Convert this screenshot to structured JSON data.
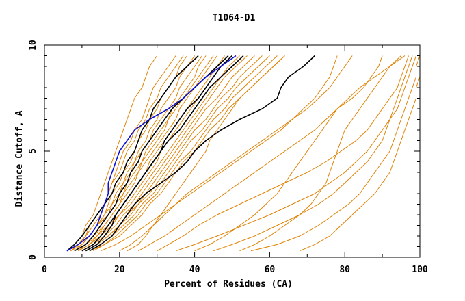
{
  "chart_data": {
    "type": "line",
    "title": "T1064-D1",
    "xlabel": "Percent of Residues (CA)",
    "ylabel": "Distance Cutoff, A",
    "xlim": [
      0,
      100
    ],
    "ylim": [
      0,
      10
    ],
    "xticks": [
      0,
      20,
      40,
      60,
      80,
      100
    ],
    "yticks": [
      0,
      5,
      10
    ],
    "grid": false,
    "legend": "none",
    "colors": {
      "orange": "#e08000",
      "black": "#000000",
      "blue": "#1010d0"
    },
    "y_levels": [
      0.3,
      0.6,
      1,
      1.5,
      2,
      2.5,
      3,
      3.5,
      4,
      4.5,
      5,
      5.5,
      6,
      6.5,
      7,
      7.5,
      8,
      8.5,
      9,
      9.5
    ],
    "series": [
      {
        "color": "orange",
        "x": [
          6,
          8,
          10,
          11,
          13,
          14,
          15,
          16,
          17,
          18,
          19,
          20,
          21,
          22,
          23,
          24,
          26,
          27,
          28,
          30
        ]
      },
      {
        "color": "orange",
        "x": [
          6,
          9,
          11,
          13,
          15,
          16,
          17,
          18,
          19,
          20,
          21,
          23,
          24,
          26,
          27,
          28,
          29,
          31,
          33,
          35
        ]
      },
      {
        "color": "orange",
        "x": [
          7,
          9,
          11,
          12,
          14,
          16,
          17,
          18,
          20,
          21,
          22,
          24,
          25,
          27,
          28,
          30,
          31,
          33,
          35,
          37
        ]
      },
      {
        "color": "orange",
        "x": [
          7,
          10,
          12,
          14,
          16,
          17,
          18,
          20,
          21,
          23,
          24,
          25,
          27,
          28,
          30,
          31,
          33,
          35,
          36,
          38
        ]
      },
      {
        "color": "orange",
        "x": [
          7,
          9,
          12,
          14,
          16,
          18,
          19,
          21,
          22,
          24,
          25,
          27,
          28,
          30,
          31,
          33,
          35,
          36,
          38,
          40
        ]
      },
      {
        "color": "orange",
        "x": [
          8,
          10,
          12,
          14,
          17,
          18,
          20,
          21,
          23,
          24,
          26,
          28,
          29,
          31,
          33,
          35,
          36,
          38,
          40,
          42
        ]
      },
      {
        "color": "orange",
        "x": [
          8,
          11,
          13,
          15,
          17,
          19,
          21,
          22,
          24,
          26,
          27,
          29,
          31,
          33,
          34,
          36,
          38,
          40,
          41,
          43
        ]
      },
      {
        "color": "orange",
        "x": [
          8,
          11,
          13,
          16,
          18,
          20,
          21,
          23,
          25,
          26,
          28,
          30,
          32,
          33,
          35,
          37,
          39,
          41,
          43,
          45
        ]
      },
      {
        "color": "orange",
        "x": [
          9,
          11,
          14,
          16,
          18,
          20,
          22,
          24,
          25,
          27,
          29,
          31,
          33,
          35,
          36,
          38,
          40,
          42,
          44,
          46
        ]
      },
      {
        "color": "orange",
        "x": [
          9,
          12,
          14,
          17,
          19,
          21,
          23,
          25,
          27,
          28,
          30,
          32,
          34,
          36,
          38,
          40,
          42,
          44,
          46,
          48
        ]
      },
      {
        "color": "orange",
        "x": [
          9,
          12,
          15,
          17,
          20,
          22,
          24,
          26,
          28,
          30,
          31,
          33,
          35,
          37,
          39,
          41,
          43,
          45,
          47,
          50
        ]
      },
      {
        "color": "orange",
        "x": [
          10,
          13,
          15,
          18,
          20,
          23,
          25,
          27,
          29,
          31,
          33,
          35,
          37,
          39,
          41,
          43,
          45,
          47,
          49,
          52
        ]
      },
      {
        "color": "orange",
        "x": [
          10,
          13,
          16,
          19,
          21,
          24,
          26,
          28,
          30,
          32,
          34,
          36,
          38,
          40,
          42,
          44,
          46,
          48,
          51,
          54
        ]
      },
      {
        "color": "orange",
        "x": [
          11,
          14,
          17,
          20,
          22,
          25,
          27,
          29,
          31,
          33,
          35,
          37,
          39,
          41,
          43,
          46,
          48,
          50,
          53,
          56
        ]
      },
      {
        "color": "orange",
        "x": [
          11,
          14,
          17,
          20,
          23,
          25,
          28,
          30,
          32,
          34,
          36,
          38,
          40,
          43,
          45,
          47,
          50,
          52,
          55,
          58
        ]
      },
      {
        "color": "orange",
        "x": [
          12,
          15,
          18,
          21,
          24,
          26,
          29,
          31,
          33,
          35,
          37,
          39,
          42,
          44,
          46,
          49,
          51,
          54,
          57,
          60
        ]
      },
      {
        "color": "orange",
        "x": [
          12,
          16,
          19,
          22,
          25,
          27,
          30,
          32,
          34,
          36,
          39,
          41,
          43,
          45,
          48,
          50,
          53,
          56,
          59,
          62
        ]
      },
      {
        "color": "orange",
        "x": [
          13,
          16,
          20,
          23,
          26,
          28,
          31,
          33,
          35,
          37,
          40,
          42,
          44,
          47,
          49,
          52,
          55,
          58,
          61,
          64
        ]
      },
      {
        "color": "orange",
        "x": [
          22,
          25,
          27,
          29,
          31,
          33,
          35,
          37,
          39,
          41,
          43,
          44,
          46,
          48,
          50,
          52,
          55,
          58,
          61,
          64
        ]
      },
      {
        "color": "orange",
        "x": [
          20,
          23,
          26,
          29,
          32,
          35,
          38,
          42,
          46,
          50,
          54,
          58,
          62,
          66,
          70,
          73,
          76,
          78,
          80,
          82
        ]
      },
      {
        "color": "orange",
        "x": [
          25,
          28,
          32,
          36,
          40,
          44,
          48,
          52,
          56,
          60,
          64,
          68,
          72,
          75,
          78,
          82,
          85,
          87,
          89,
          90
        ]
      },
      {
        "color": "orange",
        "x": [
          30,
          33,
          37,
          41,
          46,
          52,
          58,
          64,
          70,
          75,
          79,
          83,
          86,
          88,
          90,
          92,
          94,
          95,
          96,
          97
        ]
      },
      {
        "color": "orange",
        "x": [
          35,
          40,
          46,
          53,
          60,
          66,
          72,
          76,
          80,
          83,
          86,
          88,
          90,
          92,
          94,
          95,
          96,
          97,
          98,
          99
        ]
      },
      {
        "color": "orange",
        "x": [
          52,
          56,
          60,
          64,
          68,
          71,
          73,
          75,
          76,
          77,
          78,
          79,
          80,
          82,
          84,
          86,
          88,
          90,
          92,
          95
        ]
      },
      {
        "color": "orange",
        "x": [
          55,
          62,
          68,
          73,
          77,
          81,
          84,
          86,
          88,
          90,
          92,
          93,
          94,
          95,
          96,
          97,
          98,
          99,
          99,
          100
        ]
      },
      {
        "color": "orange",
        "x": [
          45,
          50,
          56,
          62,
          68,
          73,
          77,
          80,
          83,
          86,
          88,
          90,
          91,
          92,
          93,
          94,
          95,
          96,
          97,
          98
        ]
      },
      {
        "color": "orange",
        "x": [
          68,
          72,
          76,
          79,
          82,
          85,
          88,
          90,
          92,
          93,
          94,
          95,
          96,
          97,
          98,
          99,
          99,
          100,
          100,
          100
        ]
      },
      {
        "color": "orange",
        "x": [
          15,
          19,
          23,
          27,
          31,
          35,
          39,
          43,
          47,
          51,
          55,
          59,
          63,
          66,
          69,
          72,
          74,
          76,
          77,
          78
        ]
      },
      {
        "color": "orange",
        "x": [
          40,
          44,
          48,
          52,
          56,
          59,
          62,
          64,
          66,
          68,
          70,
          72,
          74,
          76,
          78,
          81,
          84,
          88,
          92,
          96
        ]
      },
      {
        "color": "black",
        "x": [
          6,
          8,
          10,
          12,
          14,
          16,
          18,
          19,
          21,
          22,
          24,
          25,
          26,
          28,
          29,
          31,
          33,
          35,
          38,
          41
        ]
      },
      {
        "color": "black",
        "x": [
          8,
          11,
          13,
          15,
          17,
          19,
          20,
          22,
          23,
          25,
          26,
          28,
          30,
          32,
          34,
          37,
          40,
          43,
          46,
          49
        ]
      },
      {
        "color": "black",
        "x": [
          11,
          14,
          16,
          18,
          19,
          21,
          23,
          25,
          27,
          29,
          31,
          32,
          34,
          36,
          38,
          41,
          43,
          45,
          47,
          50
        ]
      },
      {
        "color": "black",
        "x": [
          10,
          13,
          15,
          17,
          19,
          21,
          23,
          25,
          27,
          29,
          31,
          33,
          36,
          38,
          40,
          42,
          44,
          47,
          50,
          53
        ]
      },
      {
        "color": "black",
        "x": [
          12,
          15,
          18,
          20,
          22,
          24,
          27,
          31,
          35,
          38,
          40,
          43,
          47,
          52,
          58,
          62,
          63,
          65,
          69,
          72
        ]
      },
      {
        "color": "blue",
        "x": [
          6,
          9,
          12,
          14,
          15,
          16,
          17,
          17,
          18,
          19,
          20,
          22,
          24,
          28,
          33,
          37,
          40,
          43,
          47,
          51
        ]
      }
    ]
  }
}
